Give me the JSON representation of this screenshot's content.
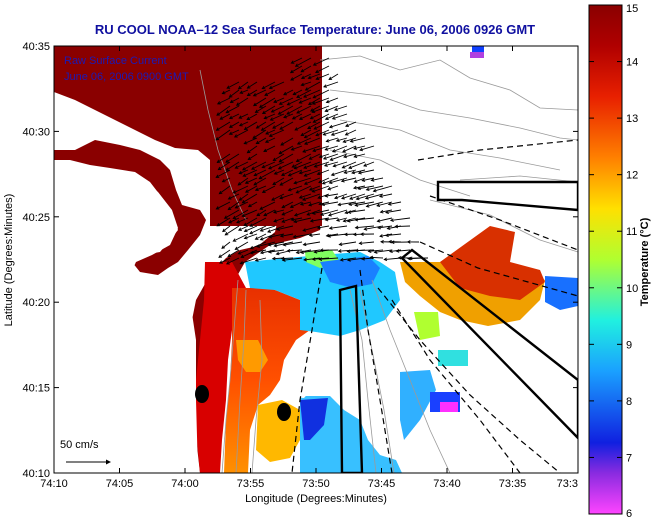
{
  "title": "RU COOL  NOAA–12  Sea Surface Temperature:  June 06, 2006 0926 GMT",
  "legend_line1": "Raw Surface Current",
  "legend_line2": "June 06, 2006 0900 GMT",
  "scale_label": "50 cm/s",
  "xlabel": "Longitude (Degrees:Minutes)",
  "ylabel": "Latitude (Degrees:Minutes)",
  "colorbar_label": "Temperature (°C)",
  "x_ticks": [
    "74:10",
    "74:05",
    "74:00",
    "73:55",
    "73:50",
    "73:45",
    "73:40",
    "73:35",
    "73:3"
  ],
  "y_ticks": [
    "40:35",
    "40:30",
    "40:25",
    "40:20",
    "40:15",
    "40:10"
  ],
  "colorbar_ticks": [
    "15",
    "14",
    "13",
    "12",
    "11",
    "10",
    "9",
    "8",
    "7",
    "6"
  ],
  "colorbar_range": [
    6,
    15
  ],
  "colorbar_colors": [
    "#ff44ff",
    "#6a1ec8",
    "#1020e0",
    "#1aa0ff",
    "#20f0e0",
    "#b0ff30",
    "#ffe000",
    "#ff8000",
    "#e82000",
    "#a00000",
    "#8a0000"
  ],
  "land_color": "#ffffff",
  "coast_color": "#8a0000",
  "arrow_color": "#000000"
}
